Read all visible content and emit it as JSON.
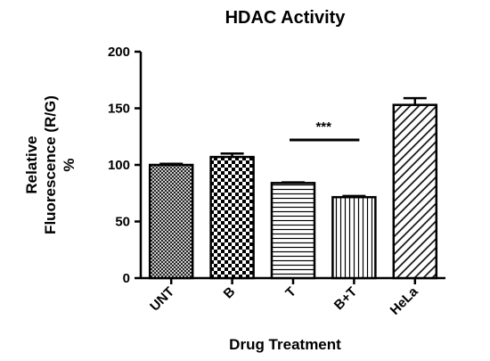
{
  "chart_data": {
    "type": "bar",
    "title": "HDAC Activity",
    "xlabel": "Drug Treatment",
    "ylabel_lines": [
      "Relative",
      "Fluorescence (R/G)",
      "%"
    ],
    "categories": [
      "UNT",
      "B",
      "T",
      "B+T",
      "HeLa"
    ],
    "values": [
      100,
      107,
      84,
      71.5,
      153
    ],
    "errors": [
      1,
      3,
      0.5,
      1,
      6
    ],
    "ylim": [
      0,
      200
    ],
    "yticks": [
      0,
      50,
      100,
      150,
      200
    ],
    "patterns": [
      "crosshatch",
      "checker",
      "horizontal",
      "vertical",
      "diagonal"
    ],
    "significance": {
      "label": "***",
      "from": "T",
      "to": "B+T",
      "y": 122
    },
    "grid": false
  }
}
